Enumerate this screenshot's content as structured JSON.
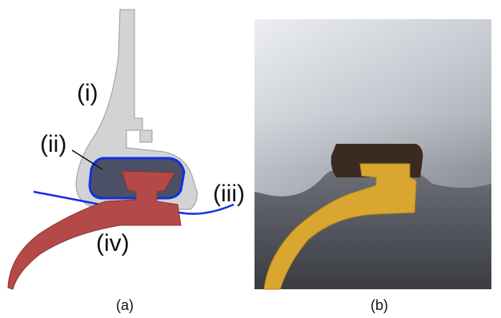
{
  "panels": [
    {
      "label": "(a)",
      "callouts": [
        "(i)",
        "(ii)",
        "(iii)",
        "(iv)"
      ]
    },
    {
      "label": "(b)"
    }
  ]
}
